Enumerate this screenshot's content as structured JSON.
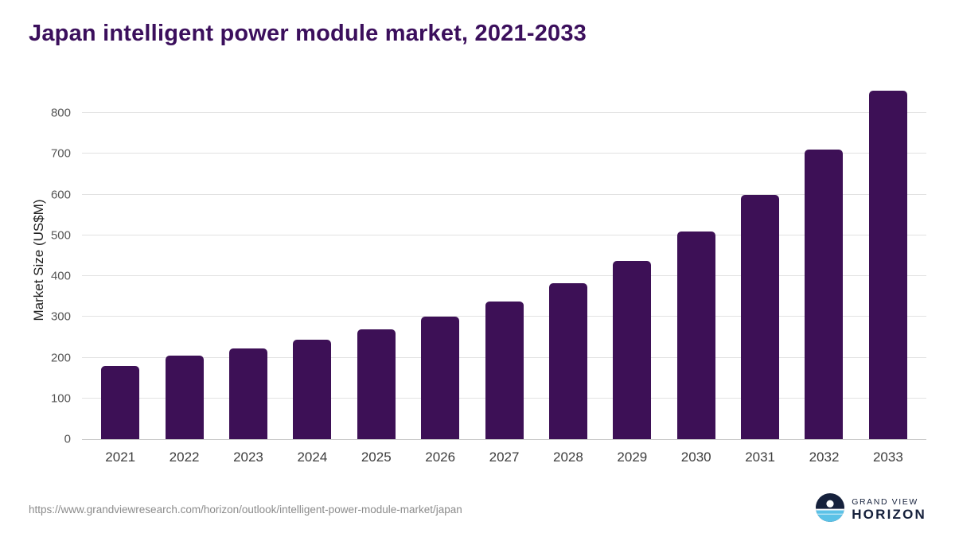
{
  "title": "Japan intelligent power module market, 2021-2033",
  "chart_data": {
    "type": "bar",
    "title": "Japan intelligent power module market, 2021-2033",
    "categories": [
      "2021",
      "2022",
      "2023",
      "2024",
      "2025",
      "2026",
      "2027",
      "2028",
      "2029",
      "2030",
      "2031",
      "2032",
      "2033"
    ],
    "values": [
      180,
      205,
      223,
      244,
      270,
      300,
      337,
      382,
      438,
      510,
      600,
      710,
      855
    ],
    "xlabel": "",
    "ylabel": "Market Size (US$M)",
    "ylim": [
      0,
      880
    ],
    "yticks": [
      0,
      100,
      200,
      300,
      400,
      500,
      600,
      700,
      800
    ],
    "grid": true,
    "legend_position": "none",
    "bar_color": "#3d1056"
  },
  "footer": {
    "source_url": "https://www.grandviewresearch.com/horizon/outlook/intelligent-power-module-market/japan",
    "logo": {
      "line1": "GRAND VIEW",
      "line2": "HORIZON",
      "navy": "#16213c",
      "teal": "#5bc2e7"
    }
  }
}
